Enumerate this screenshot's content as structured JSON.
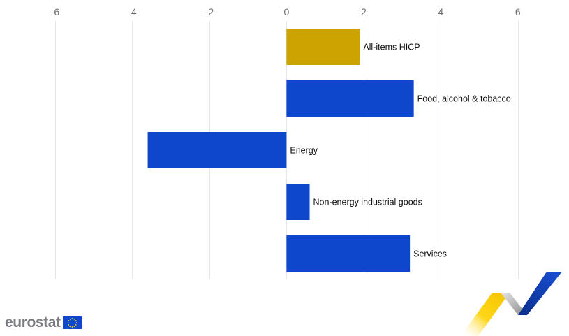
{
  "chart_data": {
    "type": "bar",
    "orientation": "horizontal",
    "categories": [
      "All-items HICP",
      "Food, alcohol & tobacco",
      "Energy",
      "Non-energy industrial goods",
      "Services"
    ],
    "values": [
      1.9,
      3.3,
      -3.6,
      0.6,
      3.2
    ],
    "colors": [
      "#cca300",
      "#0e47cb",
      "#0e47cb",
      "#0e47cb",
      "#0e47cb"
    ],
    "xlim": [
      -6,
      7
    ],
    "xticks": [
      -6,
      -4,
      -2,
      0,
      2,
      4,
      6
    ],
    "tick_labels": [
      "-6",
      "-4",
      "-2",
      "0",
      "2",
      "4",
      "6"
    ],
    "grid": true,
    "title": "",
    "xlabel": "",
    "ylabel": ""
  },
  "branding": {
    "logo_text": "eurostat",
    "logo_icon": "eu-flag-icon"
  }
}
